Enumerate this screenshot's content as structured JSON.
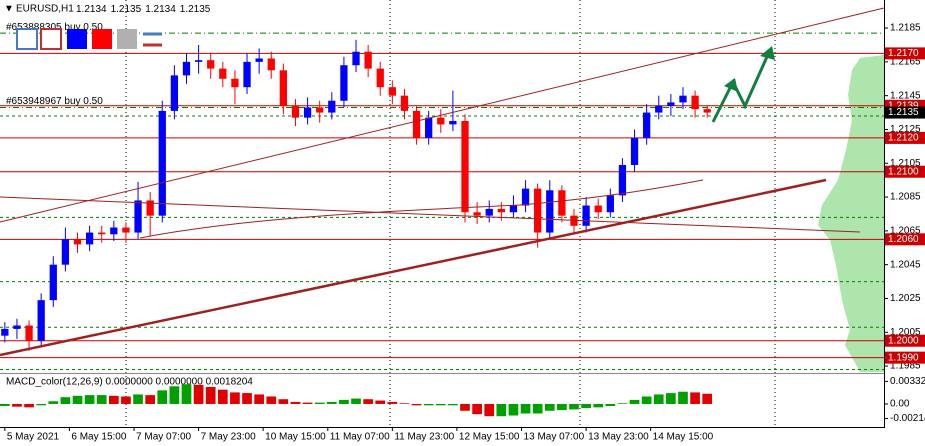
{
  "chart_data": {
    "type": "candlestick",
    "title": "EURUSD,H1",
    "quote": [
      1.2134,
      1.2135,
      1.2134,
      1.2135
    ],
    "up_color": "#0000ff",
    "down_color": "#ff0000",
    "xlim": [
      -0.4,
      72.6
    ],
    "xticks": [
      {
        "value": 0,
        "label": "5 May 2021"
      },
      {
        "value": 5.33,
        "label": "6 May 15:00"
      },
      {
        "value": 10.67,
        "label": "7 May 07:00"
      },
      {
        "value": 16,
        "label": "7 May 23:00"
      },
      {
        "value": 21.33,
        "label": "10 May 15:00"
      },
      {
        "value": 26.67,
        "label": "11 May 07:00"
      },
      {
        "value": 32,
        "label": "11 May 23:00"
      },
      {
        "value": 37.33,
        "label": "12 May 15:00"
      },
      {
        "value": 42.67,
        "label": "13 May 07:00"
      },
      {
        "value": 48,
        "label": "13 May 23:00"
      },
      {
        "value": 53.33,
        "label": "14 May 15:00"
      }
    ],
    "ylim": [
      1.19815,
      1.22016
    ],
    "yticks": [
      1.2185,
      1.2165,
      1.2145,
      1.2125,
      1.2105,
      1.2085,
      1.2065,
      1.2045,
      1.2025,
      1.2005,
      1.1985
    ],
    "open": [
      1.2003,
      1.2007,
      1.2009,
      1.2,
      1.2024,
      1.2045,
      1.206,
      1.2057,
      1.2064,
      1.2063,
      1.2067,
      1.2064,
      1.2083,
      1.2074,
      1.2136,
      1.2157,
      1.2165,
      1.2166,
      1.2161,
      1.2155,
      1.215,
      1.2165,
      1.2167,
      1.216,
      1.2139,
      1.2132,
      1.2138,
      1.2135,
      1.2142,
      1.2163,
      1.2171,
      1.2161,
      1.215,
      1.2145,
      1.2136,
      1.212,
      1.2132,
      1.2128,
      1.213,
      1.2076,
      1.2074,
      1.2078,
      1.2076,
      1.208,
      1.209,
      1.2064,
      1.2089,
      1.2074,
      1.2068,
      1.208,
      1.2076,
      1.2086,
      1.2104,
      1.212,
      1.2135,
      1.2139,
      1.2141,
      1.2145,
      1.2137
    ],
    "high": [
      1.2011,
      1.2013,
      1.2012,
      1.2028,
      1.205,
      1.2067,
      1.2064,
      1.2068,
      1.2068,
      1.2071,
      1.207,
      1.2094,
      1.2088,
      1.2142,
      1.2163,
      1.217,
      1.2175,
      1.217,
      1.2165,
      1.216,
      1.217,
      1.2173,
      1.2171,
      1.2164,
      1.2143,
      1.2144,
      1.2142,
      1.2147,
      1.2168,
      1.2178,
      1.2175,
      1.2165,
      1.2154,
      1.2149,
      1.2139,
      1.2136,
      1.2137,
      1.2148,
      1.2134,
      1.2082,
      1.2083,
      1.2082,
      1.2086,
      1.2095,
      1.2093,
      1.2095,
      1.2092,
      1.2078,
      1.2085,
      1.2084,
      1.209,
      1.2108,
      1.2125,
      1.214,
      1.2145,
      1.2146,
      1.215,
      1.2148,
      1.2139
    ],
    "low": [
      1.1999,
      1.2001,
      1.1994,
      1.1997,
      1.202,
      1.2041,
      1.2052,
      1.2053,
      1.2058,
      1.2059,
      1.2058,
      1.206,
      1.2062,
      1.207,
      1.2131,
      1.2152,
      1.2158,
      1.2155,
      1.215,
      1.214,
      1.2146,
      1.2158,
      1.2155,
      1.2134,
      1.2127,
      1.2128,
      1.2129,
      1.2131,
      1.2138,
      1.2159,
      1.2156,
      1.2145,
      1.214,
      1.2131,
      1.2116,
      1.2116,
      1.2123,
      1.2124,
      1.207,
      1.2069,
      1.207,
      1.2071,
      1.2073,
      1.2076,
      1.2055,
      1.206,
      1.207,
      1.2063,
      1.2064,
      1.2072,
      1.2073,
      1.2082,
      1.21,
      1.2116,
      1.2131,
      1.2133,
      1.2137,
      1.2132,
      1.2132
    ],
    "close": [
      1.2007,
      1.2009,
      1.2,
      1.2024,
      1.2045,
      1.206,
      1.2057,
      1.2064,
      1.2063,
      1.2067,
      1.2064,
      1.2083,
      1.2074,
      1.2136,
      1.2157,
      1.2165,
      1.2166,
      1.2161,
      1.2155,
      1.215,
      1.2165,
      1.2167,
      1.216,
      1.2139,
      1.2132,
      1.2138,
      1.2135,
      1.2142,
      1.2163,
      1.2171,
      1.2161,
      1.215,
      1.2145,
      1.2136,
      1.212,
      1.2132,
      1.2128,
      1.213,
      1.2076,
      1.2074,
      1.2078,
      1.2076,
      1.208,
      1.209,
      1.2064,
      1.2089,
      1.2074,
      1.2068,
      1.208,
      1.2076,
      1.2086,
      1.2104,
      1.212,
      1.2135,
      1.2139,
      1.2141,
      1.2145,
      1.2137,
      1.2135
    ],
    "levels": [
      {
        "value": 1.217,
        "label": "1.2170"
      },
      1.2139,
      {
        "value": 1.212,
        "label": "1.2120"
      },
      {
        "value": 1.21,
        "label": "1.2100"
      },
      {
        "value": 1.206,
        "label": "1.2060"
      },
      {
        "value": 1.2,
        "label": "1.2000"
      },
      {
        "value": 1.199,
        "label": "1.1990"
      }
    ],
    "level_color": "#cc0000",
    "bid": 1.2135,
    "orders": [
      {
        "label": "#653888305 buy 0.50",
        "value": 1.2182
      },
      {
        "label": "#653948967 buy 0.50",
        "value": 1.2138
      }
    ],
    "dashed_levels": [
      1.2133,
      1.2073,
      1.2035,
      1.2008,
      1.1983
    ],
    "order_color": "#008000",
    "macd": {
      "title": "MACD_color(12,26,9) 0.0000000 0.0000000 0.0018204",
      "ylim": [
        -0.00324,
        0.00426
      ],
      "yticks": [
        0.003321,
        {
          "value": 0,
          "label": "0.00"
        },
        -0.002144
      ],
      "up_color": "#00a000",
      "down_color": "#e00000",
      "values": [
        -0.0003,
        -0.0004,
        -0.0005,
        -0.0002,
        0.0004,
        0.001,
        0.0012,
        0.0013,
        0.0013,
        0.0012,
        0.0011,
        0.0014,
        0.0013,
        0.002,
        0.0026,
        0.0029,
        0.0028,
        0.0025,
        0.0021,
        0.0017,
        0.0016,
        0.0014,
        0.0011,
        0.0007,
        0.0003,
        0.0002,
        0.0002,
        0.0003,
        0.0006,
        0.0008,
        0.0007,
        0.0005,
        0.0003,
        0.0001,
        -0.0002,
        -0.0002,
        -0.0002,
        -0.0002,
        -0.001,
        -0.0015,
        -0.0018,
        -0.0018,
        -0.0017,
        -0.0014,
        -0.0014,
        -0.001,
        -0.0009,
        -0.0008,
        -0.0006,
        -0.0005,
        -0.0003,
        0.0001,
        0.0006,
        0.0011,
        0.0014,
        0.0016,
        0.0018,
        0.0017,
        0.0015
      ]
    }
  }
}
